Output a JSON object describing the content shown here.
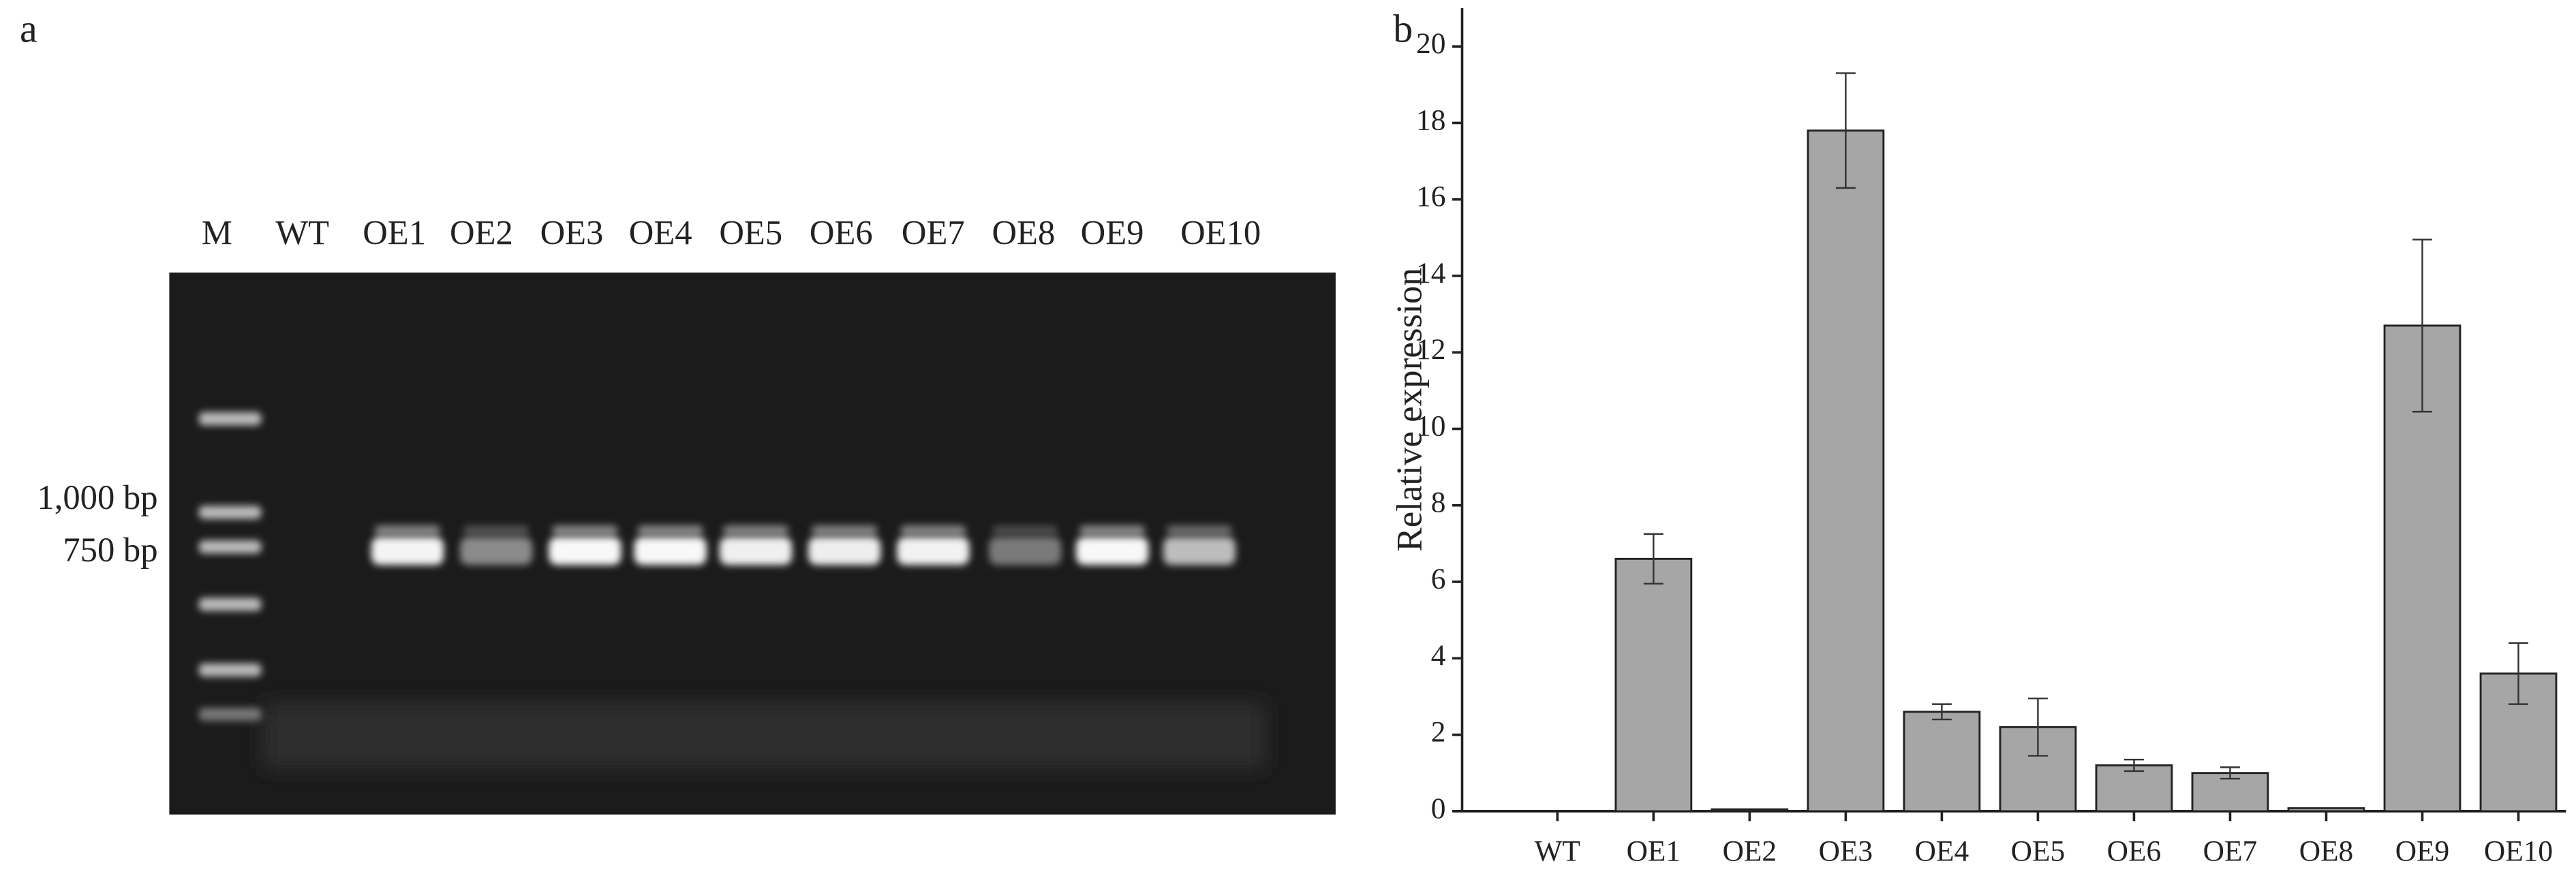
{
  "gel": {
    "panel_label": "a",
    "lanes": [
      "M",
      "WT",
      "OE1",
      "OE2",
      "OE3",
      "OE4",
      "OE5",
      "OE6",
      "OE7",
      "OE8",
      "OE9",
      "OE10"
    ],
    "markers": [
      "1,000 bp",
      "750 bp"
    ]
  },
  "chart_data": {
    "type": "bar",
    "panel_label": "b",
    "y_label": "Relative expression",
    "categories": [
      "WT",
      "OE1",
      "OE2",
      "OE3",
      "OE4",
      "OE5",
      "OE6",
      "OE7",
      "OE8",
      "OE9",
      "OE10"
    ],
    "values": [
      0,
      6.6,
      0.05,
      17.8,
      2.6,
      2.2,
      1.2,
      1.0,
      0.08,
      12.7,
      3.6
    ],
    "errors": [
      0,
      0.65,
      0,
      1.5,
      0.2,
      0.75,
      0.15,
      0.15,
      0,
      2.25,
      0.8
    ],
    "color": "#a6a6a6",
    "ylim": [
      0,
      21
    ],
    "yticks": [
      0,
      2,
      4,
      6,
      8,
      10,
      12,
      14,
      16,
      18,
      20
    ]
  }
}
